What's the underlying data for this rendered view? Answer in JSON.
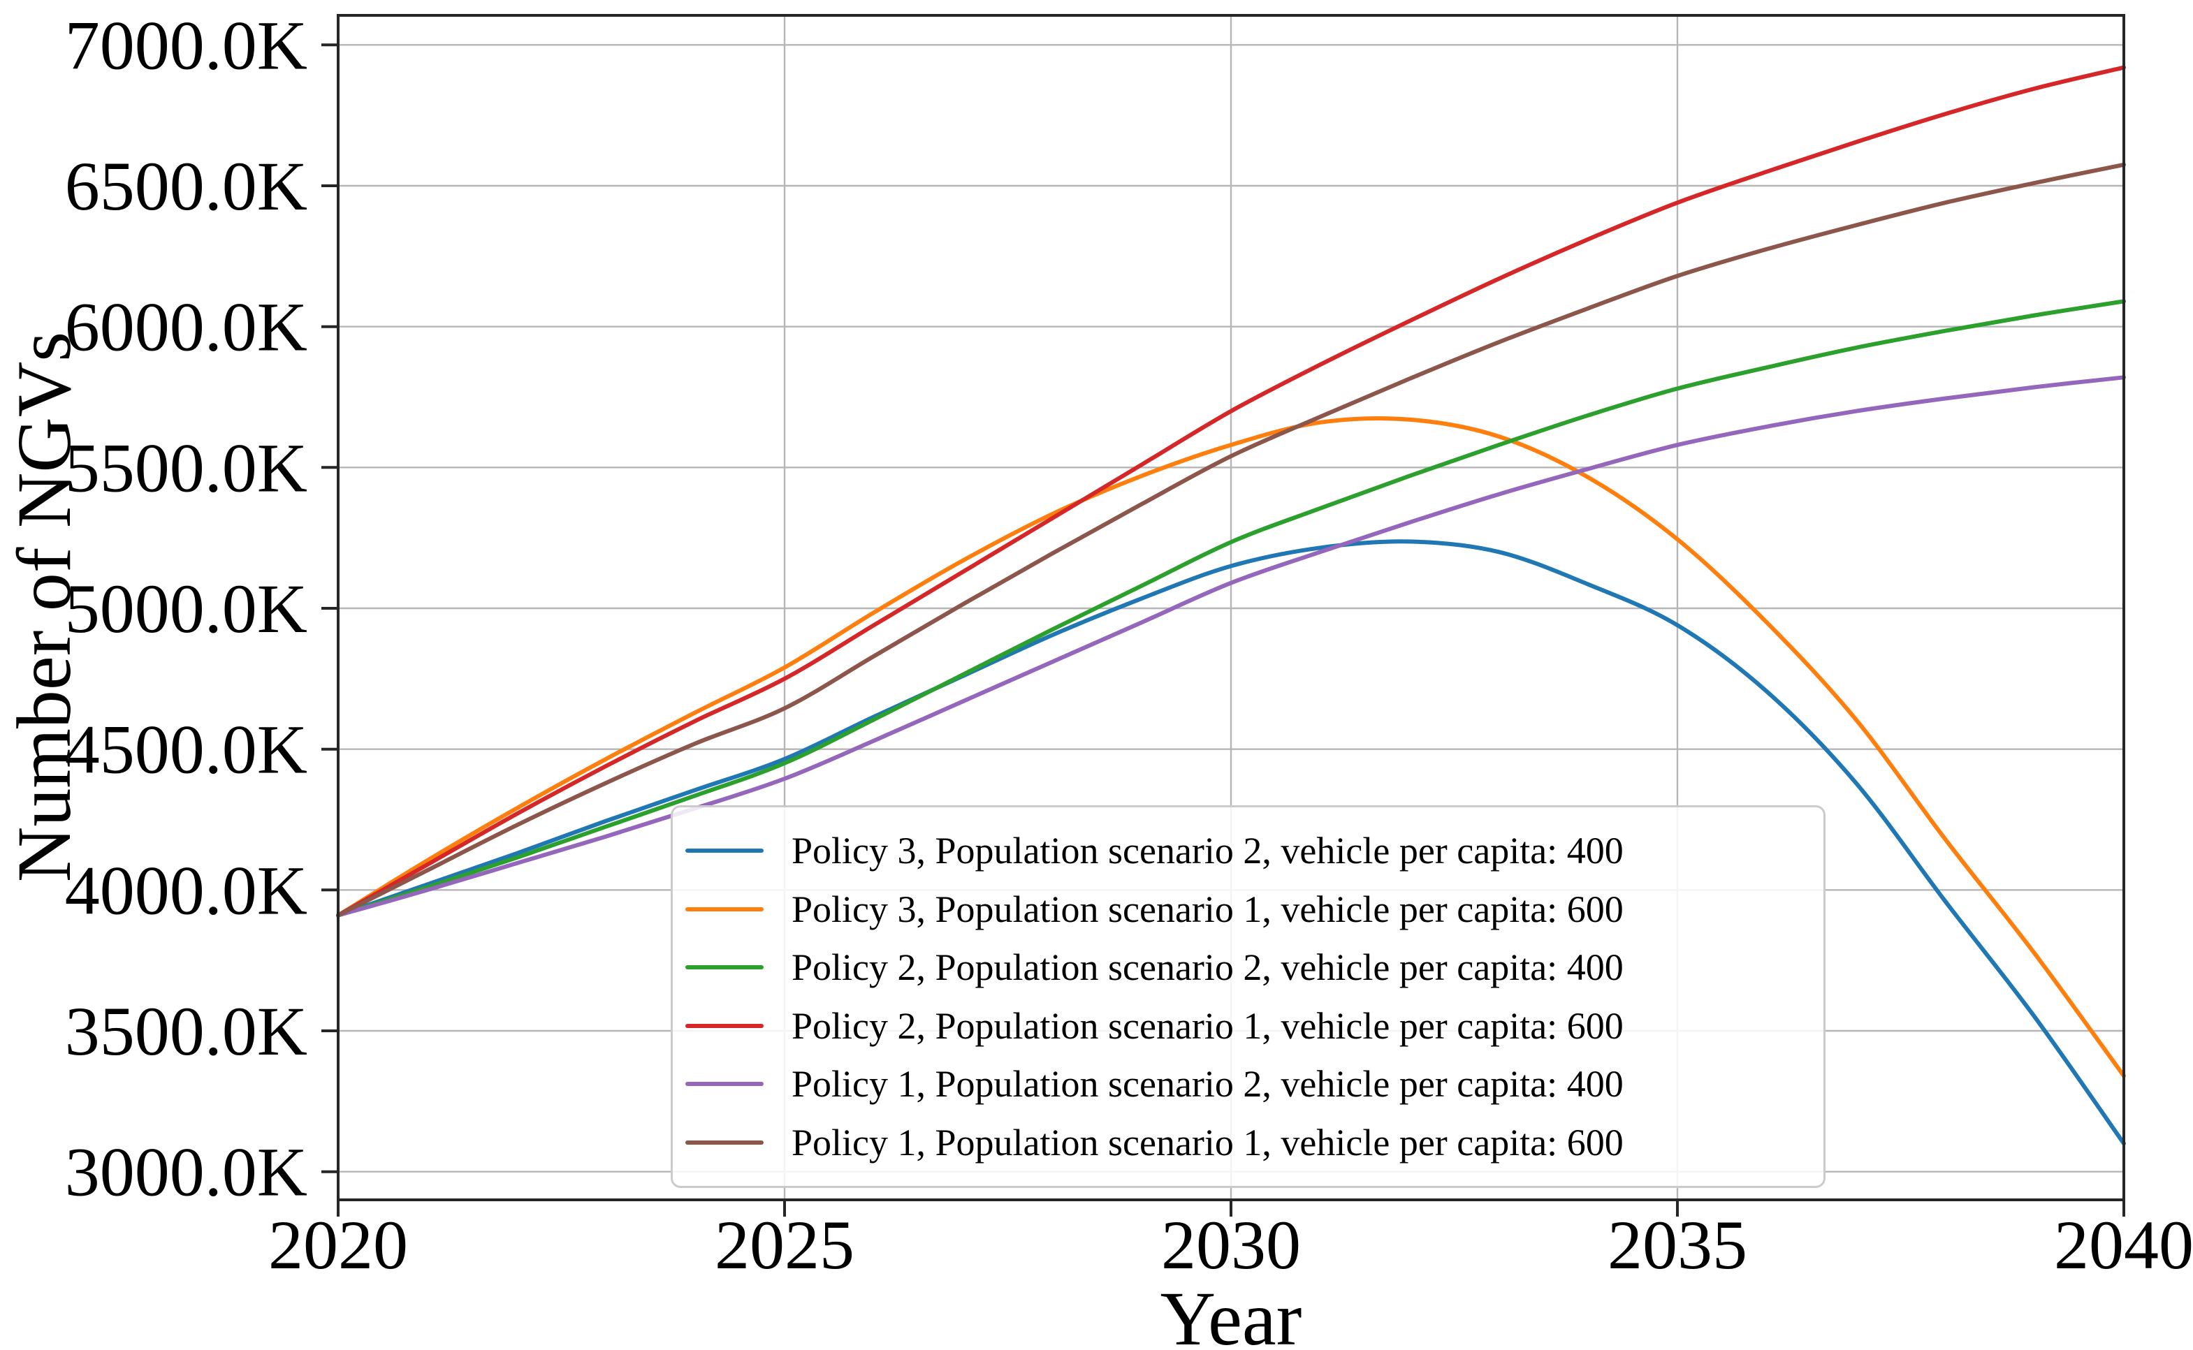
{
  "chart_data": {
    "type": "line",
    "title": "",
    "xlabel": "Year",
    "ylabel": "Number of NGVs",
    "unit": "K (thousands of vehicles)",
    "grid": true,
    "legend_position": "inside lower-center-right",
    "xlim": [
      2020,
      2040
    ],
    "ylim": [
      2900,
      7105
    ],
    "x": [
      2020,
      2021,
      2022,
      2023,
      2024,
      2025,
      2026,
      2027,
      2028,
      2029,
      2030,
      2031,
      2032,
      2033,
      2034,
      2035,
      2036,
      2037,
      2038,
      2039,
      2040
    ],
    "x_ticks": [
      {
        "v": 2020,
        "label": "2020"
      },
      {
        "v": 2025,
        "label": "2025"
      },
      {
        "v": 2030,
        "label": "2030"
      },
      {
        "v": 2035,
        "label": "2035"
      },
      {
        "v": 2040,
        "label": "2040"
      }
    ],
    "y_ticks": [
      {
        "v": 3000,
        "label": "3000.0K"
      },
      {
        "v": 3500,
        "label": "3500.0K"
      },
      {
        "v": 4000,
        "label": "4000.0K"
      },
      {
        "v": 4500,
        "label": "4500.0K"
      },
      {
        "v": 5000,
        "label": "5000.0K"
      },
      {
        "v": 5500,
        "label": "5500.0K"
      },
      {
        "v": 6000,
        "label": "6000.0K"
      },
      {
        "v": 6500,
        "label": "6500.0K"
      },
      {
        "v": 7000,
        "label": "7000.0K"
      }
    ],
    "series": [
      {
        "name": "Policy 3, Population scenario 2, vehicle per capita: 400",
        "color": "#1f77b4",
        "values": [
          3910,
          4020,
          4130,
          4245,
          4355,
          4465,
          4615,
          4760,
          4905,
          5035,
          5150,
          5215,
          5237,
          5200,
          5085,
          4940,
          4705,
          4380,
          3960,
          3550,
          3100
        ]
      },
      {
        "name": "Policy 3, Population scenario 1, vehicle per capita: 600",
        "color": "#ff7f0e",
        "values": [
          3910,
          4105,
          4290,
          4465,
          4630,
          4790,
          4985,
          5170,
          5335,
          5470,
          5580,
          5660,
          5670,
          5610,
          5465,
          5245,
          4950,
          4605,
          4180,
          3775,
          3340
        ]
      },
      {
        "name": "Policy 2, Population scenario 2, vehicle per capita: 400",
        "color": "#2ca02c",
        "values": [
          3910,
          4010,
          4115,
          4225,
          4335,
          4450,
          4605,
          4765,
          4925,
          5080,
          5235,
          5355,
          5470,
          5580,
          5685,
          5780,
          5855,
          5925,
          5985,
          6040,
          6090
        ]
      },
      {
        "name": "Policy 2, Population scenario 1, vehicle per capita: 600",
        "color": "#d62728",
        "values": [
          3910,
          4090,
          4270,
          4440,
          4600,
          4750,
          4940,
          5130,
          5320,
          5510,
          5700,
          5865,
          6020,
          6170,
          6310,
          6440,
          6550,
          6655,
          6755,
          6845,
          6920
        ]
      },
      {
        "name": "Policy 1, Population scenario 2, vehicle per capita: 400",
        "color": "#9467bd",
        "values": [
          3910,
          4000,
          4095,
          4190,
          4290,
          4395,
          4530,
          4670,
          4810,
          4950,
          5090,
          5200,
          5305,
          5405,
          5495,
          5580,
          5645,
          5700,
          5745,
          5785,
          5820
        ]
      },
      {
        "name": "Policy 1, Population scenario 1, vehicle per capita: 600",
        "color": "#8c564b",
        "values": [
          3910,
          4070,
          4230,
          4380,
          4520,
          4645,
          4830,
          5015,
          5195,
          5370,
          5540,
          5680,
          5815,
          5945,
          6065,
          6180,
          6275,
          6360,
          6440,
          6510,
          6575
        ]
      }
    ],
    "style": {
      "grid_color": "#b6b6b6",
      "spine_color": "#262626",
      "text_color": "#000000",
      "legend_border_color": "#cbcbcb"
    }
  }
}
